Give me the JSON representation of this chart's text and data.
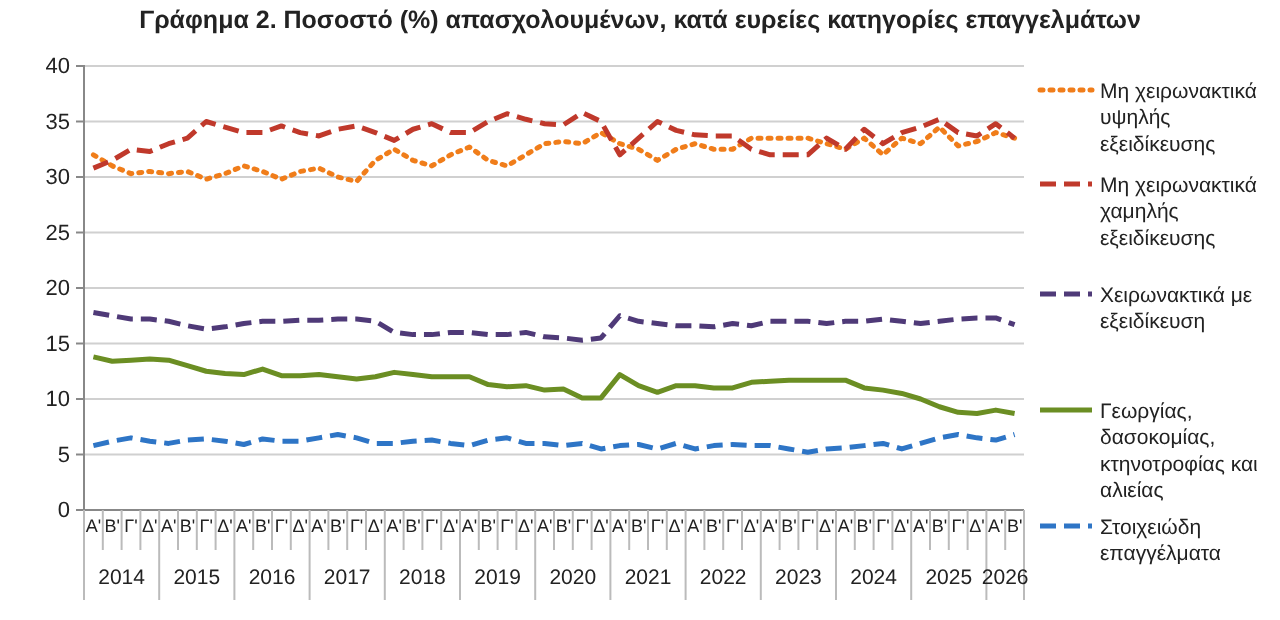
{
  "chart_data": {
    "type": "line",
    "title": "Γράφημα 2. Ποσοστό (%) απασχολουμένων, κατά ευρείες κατηγορίες επαγγελμάτων",
    "categories": [
      "Α'",
      "Β'",
      "Γ'",
      "Δ'",
      "Α'",
      "Β'",
      "Γ'",
      "Δ'",
      "Α'",
      "Β'",
      "Γ'",
      "Δ'",
      "Α'",
      "Β'",
      "Γ'",
      "Δ'",
      "Α'",
      "Β'",
      "Γ'",
      "Δ'",
      "Α'",
      "Β'",
      "Γ'",
      "Δ'",
      "Α'",
      "Β'",
      "Γ'",
      "Δ'",
      "Α'",
      "Β'",
      "Γ'",
      "Δ'",
      "Α'",
      "Β'",
      "Γ'",
      "Δ'",
      "Α'",
      "Β'",
      "Γ'",
      "Δ'",
      "Α'",
      "Β'",
      "Γ'",
      "Δ'",
      "Α'",
      "Β'",
      "Γ'",
      "Δ'",
      "Α'",
      "Β'"
    ],
    "annotations": [
      "2014",
      "2015",
      "2016",
      "2017",
      "2018",
      "2019",
      "2020",
      "2021",
      "2022",
      "2023",
      "2024",
      "2025",
      "2026"
    ],
    "ylim": [
      0,
      40
    ],
    "yticks": [
      0,
      5,
      10,
      15,
      20,
      25,
      30,
      35,
      40
    ],
    "grid": "y",
    "legend": "right",
    "series": [
      {
        "name": "Μη χειρωνακτικά υψηλής εξειδίκευσης",
        "color": "#f07d1a",
        "line_style": "dotted",
        "values": [
          32,
          31,
          30.3,
          30.5,
          30.3,
          30.5,
          29.8,
          30.3,
          31,
          30.5,
          29.8,
          30.5,
          30.8,
          30,
          29.6,
          31.5,
          32.5,
          31.5,
          31,
          32,
          32.7,
          31.5,
          31,
          32,
          33,
          33.2,
          33,
          34,
          33,
          32.5,
          31.5,
          32.5,
          33,
          32.5,
          32.5,
          33.5,
          33.5,
          33.5,
          33.5,
          33,
          32.5,
          33.5,
          32,
          33.5,
          33,
          34.5,
          32.8,
          33.2,
          34,
          33.5
        ]
      },
      {
        "name": "Μη χειρωνακτικά χαμηλής εξειδίκευσης",
        "color": "#c0392b",
        "line_style": "dashed",
        "values": [
          30.8,
          31.5,
          32.5,
          32.3,
          33,
          33.5,
          35,
          34.5,
          34,
          34,
          34.6,
          34,
          33.7,
          34.3,
          34.6,
          34,
          33.3,
          34.3,
          34.8,
          34,
          34,
          35,
          35.7,
          35.2,
          34.8,
          34.7,
          35.8,
          35,
          32,
          33.5,
          35,
          34.2,
          33.8,
          33.7,
          33.7,
          32.5,
          32,
          32,
          32,
          33.5,
          32.5,
          34.3,
          33,
          34,
          34.5,
          35.2,
          34,
          33.7,
          34.8,
          33.5
        ]
      },
      {
        "name": "Χειρωνακτικά με εξειδίκευση",
        "color": "#4f3a78",
        "line_style": "dashed",
        "values": [
          17.8,
          17.5,
          17.2,
          17.2,
          17,
          16.6,
          16.3,
          16.5,
          16.8,
          17,
          17,
          17.1,
          17.1,
          17.2,
          17.2,
          17,
          16,
          15.8,
          15.8,
          16,
          16,
          15.8,
          15.8,
          16,
          15.6,
          15.5,
          15.3,
          15.5,
          17.5,
          17,
          16.8,
          16.6,
          16.6,
          16.5,
          16.8,
          16.6,
          17,
          17,
          17,
          16.8,
          17,
          17,
          17.2,
          17,
          16.8,
          17,
          17.2,
          17.3,
          17.3,
          16.7
        ]
      },
      {
        "name": "Γεωργίας, δασοκομίας, κτηνοτροφίας και αλιείας",
        "color": "#6b8e23",
        "line_style": "solid",
        "values": [
          13.8,
          13.4,
          13.5,
          13.6,
          13.5,
          13,
          12.5,
          12.3,
          12.2,
          12.7,
          12.1,
          12.1,
          12.2,
          12,
          11.8,
          12,
          12.4,
          12.2,
          12,
          12,
          12,
          11.3,
          11.1,
          11.2,
          10.8,
          10.9,
          10.1,
          10.1,
          12.2,
          11.2,
          10.6,
          11.2,
          11.2,
          11,
          11,
          11.5,
          11.6,
          11.7,
          11.7,
          11.7,
          11.7,
          11,
          10.8,
          10.5,
          10,
          9.3,
          8.8,
          8.7,
          9,
          8.7
        ]
      },
      {
        "name": "Στοιχειώδη επαγγέλματα",
        "color": "#2e75c6",
        "line_style": "dashed",
        "values": [
          5.8,
          6.2,
          6.5,
          6.2,
          6,
          6.3,
          6.4,
          6.2,
          5.9,
          6.4,
          6.2,
          6.2,
          6.5,
          6.8,
          6.5,
          6,
          6,
          6.2,
          6.3,
          6,
          5.8,
          6.3,
          6.5,
          6,
          6,
          5.8,
          6,
          5.5,
          5.8,
          5.9,
          5.5,
          6,
          5.5,
          5.8,
          5.9,
          5.8,
          5.8,
          5.5,
          5.2,
          5.5,
          5.6,
          5.8,
          6,
          5.5,
          6,
          6.5,
          6.8,
          6.5,
          6.3,
          6.8
        ]
      }
    ]
  }
}
